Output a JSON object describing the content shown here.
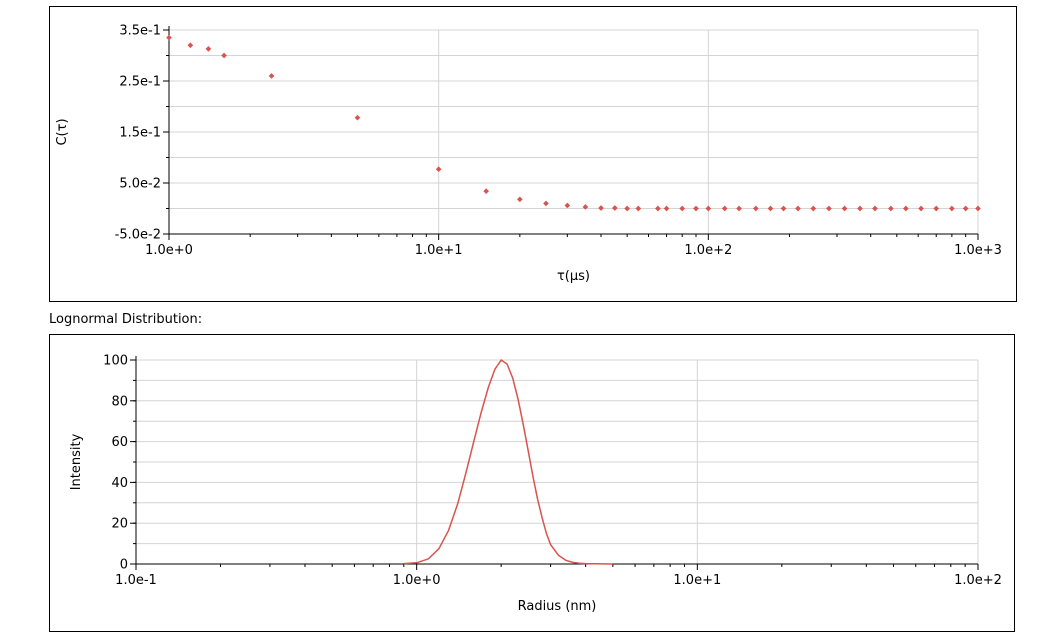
{
  "section_label": "Lognormal Distribution:",
  "colors": {
    "series": "#d9534f",
    "grid": "#d4d4d4",
    "axis": "#000000"
  },
  "chart_data": [
    {
      "type": "scatter",
      "xlabel": "τ(μs)",
      "ylabel": "C(τ)",
      "x_scale": "log",
      "xlim": [
        1,
        1000
      ],
      "ylim": [
        -0.05,
        0.35
      ],
      "x_tick_labels": [
        "1.0e+0",
        "1.0e+1",
        "1.0e+2",
        "1.0e+3"
      ],
      "x_ticks": [
        1,
        10,
        100,
        1000
      ],
      "y_tick_labels": [
        "3.5e-1",
        "2.5e-1",
        "1.5e-1",
        "5.0e-2",
        "-5.0e-2"
      ],
      "y_ticks": [
        0.35,
        0.25,
        0.15,
        0.05,
        -0.05
      ],
      "grid": true,
      "series": [
        {
          "x": [
            1.0,
            1.2,
            1.4,
            1.6,
            2.4,
            5.0,
            10,
            15,
            20,
            25,
            30,
            35,
            40,
            45,
            50,
            55,
            65,
            70,
            80,
            90,
            100,
            115,
            130,
            150,
            170,
            190,
            215,
            245,
            280,
            320,
            365,
            415,
            475,
            540,
            615,
            700,
            800,
            900,
            1000
          ],
          "y": [
            0.335,
            0.32,
            0.313,
            0.3,
            0.26,
            0.178,
            0.077,
            0.034,
            0.018,
            0.01,
            0.006,
            0.003,
            0.001,
            0.001,
            0.0,
            0.0,
            0.0,
            0.0,
            0.0,
            0.0,
            0.0,
            0.0,
            0.0,
            0.0,
            0.0,
            0.0,
            0.0,
            0.0,
            0.0,
            0.0,
            0.0,
            0.0,
            0.0,
            0.0,
            0.0,
            0.0,
            0.0,
            0.0,
            0.0
          ]
        }
      ]
    },
    {
      "type": "line",
      "xlabel": "Radius (nm)",
      "ylabel": "Intensity",
      "x_scale": "log",
      "xlim": [
        0.1,
        100
      ],
      "ylim": [
        0,
        100
      ],
      "x_tick_labels": [
        "1.0e-1",
        "1.0e+0",
        "1.0e+1",
        "1.0e+2"
      ],
      "x_ticks": [
        0.1,
        1,
        10,
        100
      ],
      "y_tick_labels": [
        "100",
        "80",
        "60",
        "40",
        "20",
        "0"
      ],
      "y_ticks": [
        100,
        80,
        60,
        40,
        20,
        0
      ],
      "grid": true,
      "series": [
        {
          "x": [
            0.9,
            1.0,
            1.1,
            1.2,
            1.3,
            1.4,
            1.5,
            1.6,
            1.7,
            1.8,
            1.9,
            2.0,
            2.1,
            2.2,
            2.3,
            2.4,
            2.5,
            2.6,
            2.7,
            2.8,
            2.9,
            3.0,
            3.2,
            3.4,
            3.6,
            3.8,
            4.0,
            4.3,
            4.6,
            5.0
          ],
          "y": [
            0.2,
            0.6,
            2.5,
            7.5,
            16.5,
            29.5,
            45,
            60.5,
            74.5,
            86.5,
            95.5,
            100,
            98,
            91,
            80.5,
            68,
            55,
            42.5,
            31.5,
            22.5,
            15,
            9.5,
            4.3,
            1.8,
            0.8,
            0.4,
            0.2,
            0.1,
            0.05,
            0.0
          ]
        }
      ]
    }
  ]
}
